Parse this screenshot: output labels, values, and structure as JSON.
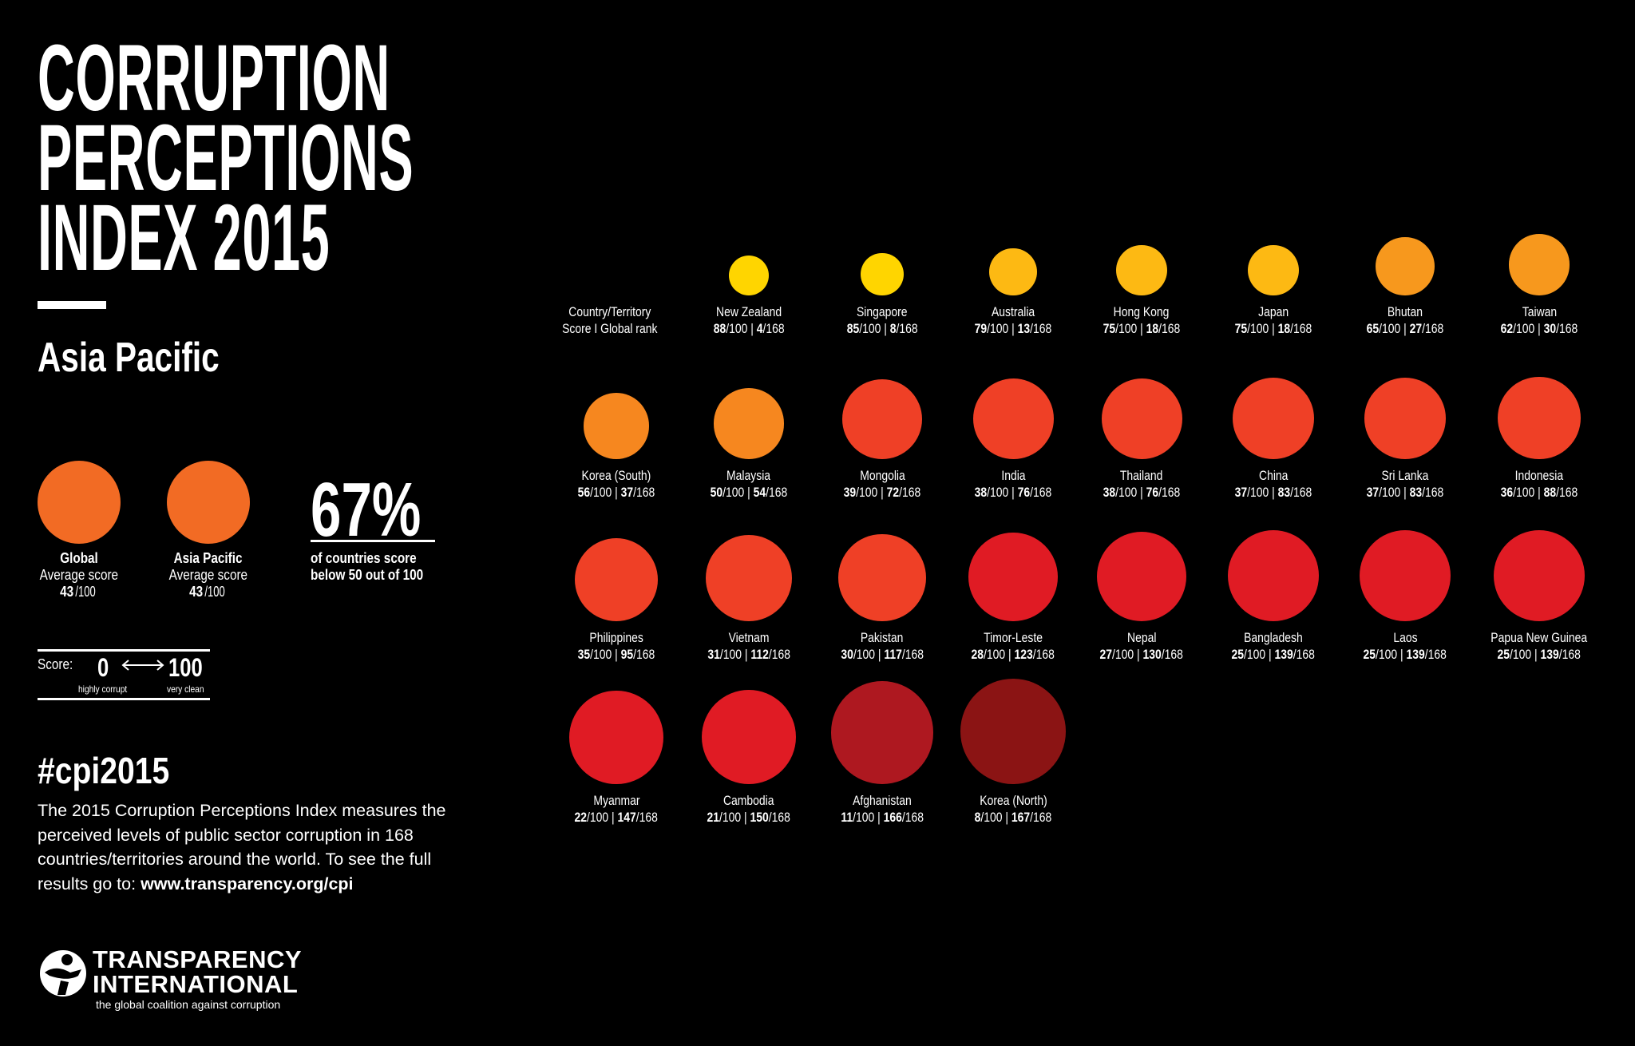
{
  "title": {
    "lines": [
      "CORRUPTION",
      "PERCEPTIONS",
      "INDEX 2015"
    ]
  },
  "region": "Asia Pacific",
  "averages": [
    {
      "label": "Global",
      "sub": "Average score",
      "score": "43",
      "max": "/100",
      "color": "#F26B24"
    },
    {
      "label": "Asia Pacific",
      "sub": "Average score",
      "score": "43",
      "max": "/100",
      "color": "#F26B24"
    }
  ],
  "stat": {
    "value": "67%",
    "line1": "of countries score",
    "line2": "below 50 out of 100"
  },
  "scale": {
    "label": "Score:",
    "min": "0",
    "max": "100",
    "min_label": "highly corrupt",
    "max_label": "very clean"
  },
  "hashtag": "#cpi2015",
  "description": {
    "text": "The 2015 Corruption Perceptions Index measures the perceived levels of public sector corruption in 168 countries/territories around the world. To see the full results go to: ",
    "link": "www.transparency.org/cpi"
  },
  "logo": {
    "line1": "TRANSPARENCY",
    "line2": "INTERNATIONAL",
    "tagline": "the global coalition against corruption"
  },
  "chart_data": {
    "type": "scatter",
    "legend_header": {
      "line1": "Country/Territory",
      "line2": "Score I Global rank"
    },
    "score_max": 100,
    "rank_total": 168,
    "countries": [
      {
        "name": "New Zealand",
        "score": 88,
        "rank": 4,
        "color": "#FFD500"
      },
      {
        "name": "Singapore",
        "score": 85,
        "rank": 8,
        "color": "#FFD500"
      },
      {
        "name": "Australia",
        "score": 79,
        "rank": 13,
        "color": "#FDB913"
      },
      {
        "name": "Hong Kong",
        "score": 75,
        "rank": 18,
        "color": "#FDB913"
      },
      {
        "name": "Japan",
        "score": 75,
        "rank": 18,
        "color": "#FDB913"
      },
      {
        "name": "Bhutan",
        "score": 65,
        "rank": 27,
        "color": "#F7981D"
      },
      {
        "name": "Taiwan",
        "score": 62,
        "rank": 30,
        "color": "#F7981D"
      },
      {
        "name": "Korea (South)",
        "score": 56,
        "rank": 37,
        "color": "#F6871F"
      },
      {
        "name": "Malaysia",
        "score": 50,
        "rank": 54,
        "color": "#F6871F"
      },
      {
        "name": "Mongolia",
        "score": 39,
        "rank": 72,
        "color": "#EF4026"
      },
      {
        "name": "India",
        "score": 38,
        "rank": 76,
        "color": "#EF4026"
      },
      {
        "name": "Thailand",
        "score": 38,
        "rank": 76,
        "color": "#EF4026"
      },
      {
        "name": "China",
        "score": 37,
        "rank": 83,
        "color": "#EF4026"
      },
      {
        "name": "Sri Lanka",
        "score": 37,
        "rank": 83,
        "color": "#EF4026"
      },
      {
        "name": "Indonesia",
        "score": 36,
        "rank": 88,
        "color": "#EF4026"
      },
      {
        "name": "Philippines",
        "score": 35,
        "rank": 95,
        "color": "#EF4026"
      },
      {
        "name": "Vietnam",
        "score": 31,
        "rank": 112,
        "color": "#EF4026"
      },
      {
        "name": "Pakistan",
        "score": 30,
        "rank": 117,
        "color": "#EF4026"
      },
      {
        "name": "Timor-Leste",
        "score": 28,
        "rank": 123,
        "color": "#E01B24"
      },
      {
        "name": "Nepal",
        "score": 27,
        "rank": 130,
        "color": "#E01B24"
      },
      {
        "name": "Bangladesh",
        "score": 25,
        "rank": 139,
        "color": "#E01B24"
      },
      {
        "name": "Laos",
        "score": 25,
        "rank": 139,
        "color": "#E01B24"
      },
      {
        "name": "Papua New Guinea",
        "score": 25,
        "rank": 139,
        "color": "#E01B24"
      },
      {
        "name": "Myanmar",
        "score": 22,
        "rank": 147,
        "color": "#E01B24"
      },
      {
        "name": "Cambodia",
        "score": 21,
        "rank": 150,
        "color": "#E01B24"
      },
      {
        "name": "Afghanistan",
        "score": 11,
        "rank": 166,
        "color": "#AE1820"
      },
      {
        "name": "Korea (North)",
        "score": 8,
        "rank": 167,
        "color": "#8B1414"
      }
    ]
  }
}
